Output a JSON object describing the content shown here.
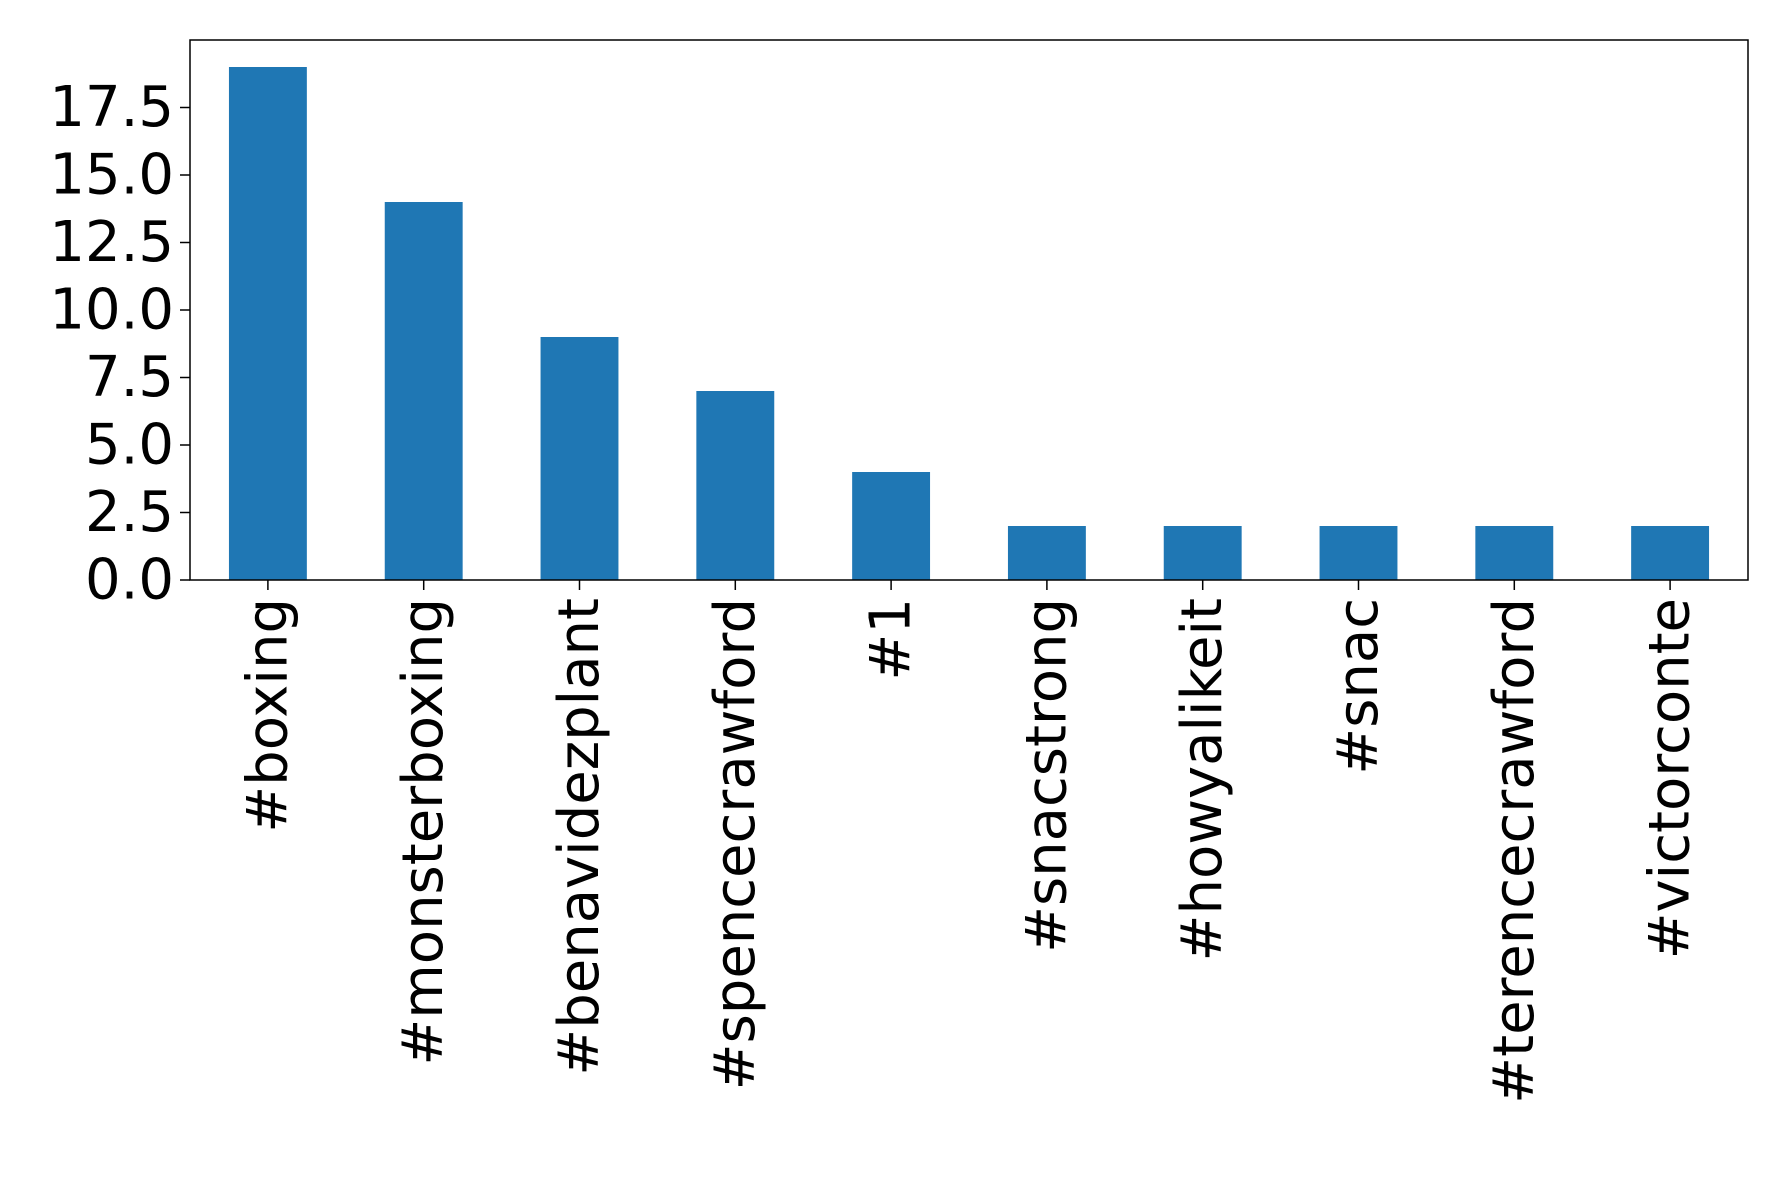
{
  "chart_data": {
    "type": "bar",
    "categories": [
      "#boxing",
      "#monsterboxing",
      "#benavidezplant",
      "#spencecrawford",
      "#1",
      "#snacstrong",
      "#howyalikeit",
      "#snac",
      "#terencecrawford",
      "#victorconte"
    ],
    "values": [
      19,
      14,
      9,
      7,
      4,
      2,
      2,
      2,
      2,
      2
    ],
    "ylim": [
      0,
      20
    ],
    "yticks": [
      0.0,
      2.5,
      5.0,
      7.5,
      10.0,
      12.5,
      15.0,
      17.5
    ],
    "ytick_labels": [
      "0.0",
      "2.5",
      "5.0",
      "7.5",
      "10.0",
      "12.5",
      "15.0",
      "17.5"
    ],
    "title": "",
    "xlabel": "",
    "ylabel": "",
    "bar_color": "#1f77b4",
    "grid": false,
    "legend": "none"
  }
}
